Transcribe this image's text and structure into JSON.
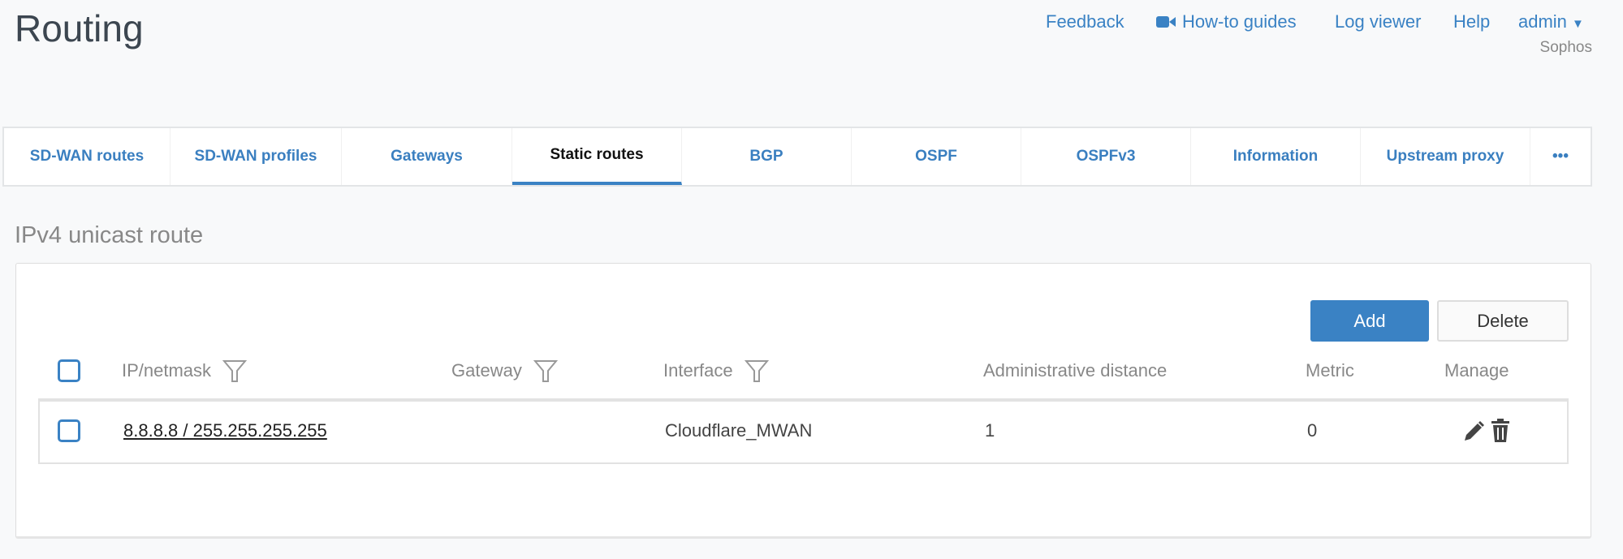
{
  "header": {
    "title": "Routing",
    "links": {
      "feedback": "Feedback",
      "howto": "How-to guides",
      "logviewer": "Log viewer",
      "help": "Help",
      "user": "admin"
    },
    "org": "Sophos"
  },
  "tabs": [
    "SD-WAN routes",
    "SD-WAN profiles",
    "Gateways",
    "Static routes",
    "BGP",
    "OSPF",
    "OSPFv3",
    "Information",
    "Upstream proxy",
    "•••"
  ],
  "active_tab": "Static routes",
  "section": {
    "title": "IPv4 unicast route",
    "add_label": "Add",
    "delete_label": "Delete",
    "columns": {
      "ip": "IP/netmask",
      "gateway": "Gateway",
      "interface": "Interface",
      "admin": "Administrative distance",
      "metric": "Metric",
      "manage": "Manage"
    },
    "rows": [
      {
        "ip": "8.8.8.8 / 255.255.255.255",
        "gateway": "",
        "interface": "Cloudflare_MWAN",
        "admin": "1",
        "metric": "0"
      }
    ]
  },
  "colors": {
    "accent": "#3a82c4"
  }
}
